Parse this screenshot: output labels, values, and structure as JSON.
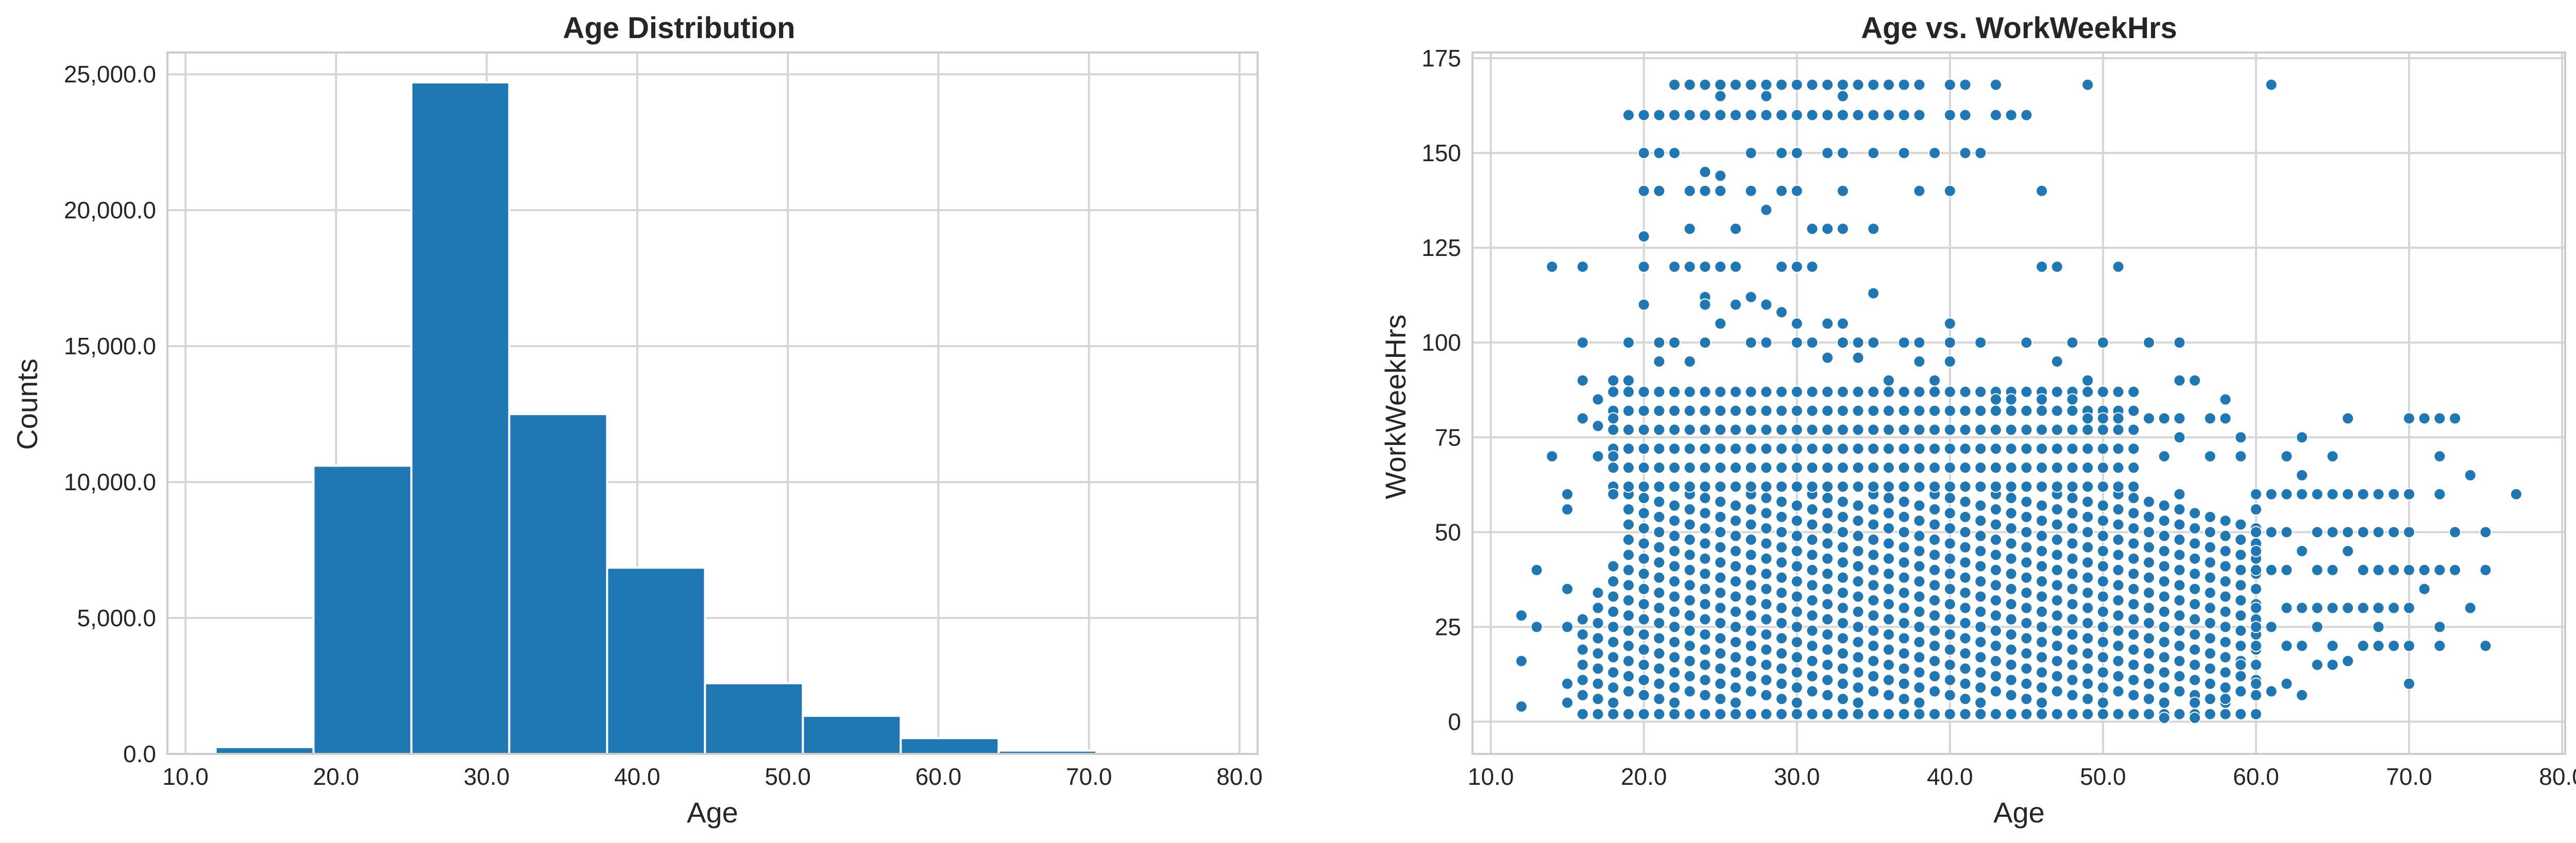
{
  "chart_data": [
    {
      "type": "bar",
      "title": "Age Distribution",
      "xlabel": "Age",
      "ylabel": "Counts",
      "xlim": [
        8.8,
        81.2
      ],
      "ylim": [
        0,
        25800
      ],
      "xticks": [
        "10.0",
        "20.0",
        "30.0",
        "40.0",
        "50.0",
        "60.0",
        "70.0",
        "80.0"
      ],
      "yticks": [
        "0.0",
        "5,000.0",
        "10,000.0",
        "15,000.0",
        "20,000.0",
        "25,000.0"
      ],
      "grid": true,
      "color": "#1f77b4",
      "bins": [
        {
          "from": 12.0,
          "to": 18.5,
          "value": 250
        },
        {
          "from": 18.5,
          "to": 25.0,
          "value": 10600
        },
        {
          "from": 25.0,
          "to": 31.5,
          "value": 24700
        },
        {
          "from": 31.5,
          "to": 38.0,
          "value": 12500
        },
        {
          "from": 38.0,
          "to": 44.5,
          "value": 6850
        },
        {
          "from": 44.5,
          "to": 51.0,
          "value": 2600
        },
        {
          "from": 51.0,
          "to": 57.5,
          "value": 1400
        },
        {
          "from": 57.5,
          "to": 64.0,
          "value": 580
        },
        {
          "from": 64.0,
          "to": 70.5,
          "value": 120
        },
        {
          "from": 70.5,
          "to": 77.0,
          "value": 20
        }
      ]
    },
    {
      "type": "scatter",
      "title": "Age vs. WorkWeekHrs",
      "xlabel": "Age",
      "ylabel": "WorkWeekHrs",
      "xlim": [
        8.8,
        80.2
      ],
      "ylim": [
        -8.5,
        176.5
      ],
      "xticks": [
        "10.0",
        "20.0",
        "30.0",
        "40.0",
        "50.0",
        "60.0",
        "70.0",
        "80.0"
      ],
      "yticks": [
        "0",
        "25",
        "50",
        "75",
        "100",
        "125",
        "150",
        "175"
      ],
      "grid": true,
      "color": "#1f77b4",
      "dense_region": {
        "x": [
          16,
          60
        ],
        "y": [
          2,
          60
        ],
        "x_int_step": 1
      },
      "points": [
        [
          12,
          28
        ],
        [
          12,
          16
        ],
        [
          12,
          4
        ],
        [
          13,
          25
        ],
        [
          13,
          40
        ],
        [
          14,
          70
        ],
        [
          14,
          120
        ],
        [
          15,
          60
        ],
        [
          15,
          56
        ],
        [
          15,
          35
        ],
        [
          15,
          25
        ],
        [
          15,
          10
        ],
        [
          15,
          5
        ],
        [
          16,
          100
        ],
        [
          16,
          120
        ],
        [
          16,
          90
        ],
        [
          16,
          80
        ],
        [
          17,
          70
        ],
        [
          17,
          78
        ],
        [
          17,
          85
        ],
        [
          18,
          60
        ],
        [
          18,
          70
        ],
        [
          18,
          90
        ],
        [
          18,
          80
        ],
        [
          19,
          100
        ],
        [
          19,
          160
        ],
        [
          19,
          90
        ],
        [
          20,
          150
        ],
        [
          20,
          160
        ],
        [
          20,
          140
        ],
        [
          20,
          128
        ],
        [
          20,
          120
        ],
        [
          20,
          110
        ],
        [
          21,
          140
        ],
        [
          21,
          150
        ],
        [
          21,
          160
        ],
        [
          21,
          100
        ],
        [
          21,
          95
        ],
        [
          22,
          168
        ],
        [
          22,
          160
        ],
        [
          22,
          150
        ],
        [
          22,
          120
        ],
        [
          22,
          100
        ],
        [
          23,
          168
        ],
        [
          23,
          160
        ],
        [
          23,
          140
        ],
        [
          23,
          130
        ],
        [
          23,
          120
        ],
        [
          23,
          95
        ],
        [
          24,
          168
        ],
        [
          24,
          160
        ],
        [
          24,
          145
        ],
        [
          24,
          140
        ],
        [
          24,
          120
        ],
        [
          24,
          112
        ],
        [
          24,
          110
        ],
        [
          24,
          100
        ],
        [
          25,
          168
        ],
        [
          25,
          165
        ],
        [
          25,
          160
        ],
        [
          25,
          144
        ],
        [
          25,
          140
        ],
        [
          25,
          120
        ],
        [
          25,
          105
        ],
        [
          26,
          168
        ],
        [
          26,
          160
        ],
        [
          26,
          130
        ],
        [
          26,
          120
        ],
        [
          26,
          110
        ],
        [
          27,
          168
        ],
        [
          27,
          160
        ],
        [
          27,
          150
        ],
        [
          27,
          140
        ],
        [
          27,
          112
        ],
        [
          27,
          100
        ],
        [
          28,
          168
        ],
        [
          28,
          165
        ],
        [
          28,
          160
        ],
        [
          28,
          135
        ],
        [
          28,
          110
        ],
        [
          28,
          100
        ],
        [
          29,
          168
        ],
        [
          29,
          160
        ],
        [
          29,
          150
        ],
        [
          29,
          140
        ],
        [
          29,
          120
        ],
        [
          29,
          108
        ],
        [
          30,
          168
        ],
        [
          30,
          160
        ],
        [
          30,
          150
        ],
        [
          30,
          140
        ],
        [
          30,
          120
        ],
        [
          30,
          105
        ],
        [
          30,
          100
        ],
        [
          31,
          168
        ],
        [
          31,
          160
        ],
        [
          31,
          130
        ],
        [
          31,
          120
        ],
        [
          31,
          100
        ],
        [
          32,
          168
        ],
        [
          32,
          160
        ],
        [
          32,
          150
        ],
        [
          32,
          130
        ],
        [
          32,
          105
        ],
        [
          32,
          96
        ],
        [
          33,
          168
        ],
        [
          33,
          165
        ],
        [
          33,
          160
        ],
        [
          33,
          150
        ],
        [
          33,
          140
        ],
        [
          33,
          130
        ],
        [
          33,
          105
        ],
        [
          33,
          100
        ],
        [
          34,
          168
        ],
        [
          34,
          160
        ],
        [
          34,
          100
        ],
        [
          34,
          96
        ],
        [
          35,
          168
        ],
        [
          35,
          160
        ],
        [
          35,
          150
        ],
        [
          35,
          130
        ],
        [
          35,
          113
        ],
        [
          35,
          100
        ],
        [
          36,
          168
        ],
        [
          36,
          160
        ],
        [
          36,
          90
        ],
        [
          37,
          168
        ],
        [
          37,
          160
        ],
        [
          37,
          150
        ],
        [
          37,
          100
        ],
        [
          38,
          168
        ],
        [
          38,
          160
        ],
        [
          38,
          140
        ],
        [
          38,
          100
        ],
        [
          38,
          95
        ],
        [
          39,
          150
        ],
        [
          39,
          90
        ],
        [
          40,
          168
        ],
        [
          40,
          160
        ],
        [
          40,
          140
        ],
        [
          40,
          105
        ],
        [
          40,
          100
        ],
        [
          40,
          95
        ],
        [
          41,
          168
        ],
        [
          41,
          160
        ],
        [
          41,
          150
        ],
        [
          42,
          150
        ],
        [
          42,
          100
        ],
        [
          43,
          168
        ],
        [
          43,
          160
        ],
        [
          43,
          85
        ],
        [
          44,
          160
        ],
        [
          44,
          85
        ],
        [
          45,
          160
        ],
        [
          45,
          100
        ],
        [
          46,
          140
        ],
        [
          46,
          120
        ],
        [
          46,
          85
        ],
        [
          47,
          120
        ],
        [
          47,
          95
        ],
        [
          48,
          100
        ],
        [
          48,
          85
        ],
        [
          49,
          168
        ],
        [
          49,
          90
        ],
        [
          49,
          80
        ],
        [
          50,
          100
        ],
        [
          50,
          80
        ],
        [
          51,
          120
        ],
        [
          51,
          80
        ],
        [
          53,
          100
        ],
        [
          53,
          80
        ],
        [
          54,
          80
        ],
        [
          54,
          70
        ],
        [
          54,
          1
        ],
        [
          55,
          100
        ],
        [
          55,
          90
        ],
        [
          55,
          80
        ],
        [
          55,
          75
        ],
        [
          56,
          90
        ],
        [
          56,
          1
        ],
        [
          56,
          5
        ],
        [
          57,
          80
        ],
        [
          57,
          70
        ],
        [
          58,
          85
        ],
        [
          58,
          80
        ],
        [
          58,
          6
        ],
        [
          59,
          75
        ],
        [
          59,
          70
        ],
        [
          59,
          20
        ],
        [
          59,
          15
        ],
        [
          60,
          60
        ],
        [
          60,
          56
        ],
        [
          60,
          50
        ],
        [
          60,
          45
        ],
        [
          60,
          40
        ],
        [
          60,
          35
        ],
        [
          60,
          30
        ],
        [
          60,
          25
        ],
        [
          60,
          20
        ],
        [
          60,
          15
        ],
        [
          60,
          10
        ],
        [
          61,
          168
        ],
        [
          61,
          60
        ],
        [
          61,
          50
        ],
        [
          61,
          40
        ],
        [
          61,
          25
        ],
        [
          61,
          8
        ],
        [
          62,
          70
        ],
        [
          62,
          60
        ],
        [
          62,
          50
        ],
        [
          62,
          40
        ],
        [
          62,
          30
        ],
        [
          62,
          20
        ],
        [
          62,
          10
        ],
        [
          63,
          75
        ],
        [
          63,
          65
        ],
        [
          63,
          60
        ],
        [
          63,
          45
        ],
        [
          63,
          30
        ],
        [
          63,
          20
        ],
        [
          63,
          7
        ],
        [
          64,
          60
        ],
        [
          64,
          50
        ],
        [
          64,
          40
        ],
        [
          64,
          30
        ],
        [
          64,
          25
        ],
        [
          64,
          15
        ],
        [
          65,
          70
        ],
        [
          65,
          60
        ],
        [
          65,
          50
        ],
        [
          65,
          40
        ],
        [
          65,
          30
        ],
        [
          65,
          20
        ],
        [
          65,
          15
        ],
        [
          66,
          80
        ],
        [
          66,
          60
        ],
        [
          66,
          50
        ],
        [
          66,
          45
        ],
        [
          66,
          30
        ],
        [
          66,
          16
        ],
        [
          67,
          60
        ],
        [
          67,
          50
        ],
        [
          67,
          40
        ],
        [
          67,
          30
        ],
        [
          67,
          20
        ],
        [
          68,
          60
        ],
        [
          68,
          50
        ],
        [
          68,
          40
        ],
        [
          68,
          30
        ],
        [
          68,
          25
        ],
        [
          68,
          20
        ],
        [
          69,
          60
        ],
        [
          69,
          50
        ],
        [
          69,
          40
        ],
        [
          69,
          30
        ],
        [
          69,
          20
        ],
        [
          70,
          80
        ],
        [
          70,
          60
        ],
        [
          70,
          50
        ],
        [
          70,
          40
        ],
        [
          70,
          30
        ],
        [
          70,
          20
        ],
        [
          70,
          10
        ],
        [
          71,
          80
        ],
        [
          71,
          40
        ],
        [
          71,
          35
        ],
        [
          72,
          80
        ],
        [
          72,
          70
        ],
        [
          72,
          60
        ],
        [
          72,
          40
        ],
        [
          72,
          25
        ],
        [
          72,
          20
        ],
        [
          73,
          80
        ],
        [
          73,
          50
        ],
        [
          73,
          40
        ],
        [
          74,
          65
        ],
        [
          74,
          30
        ],
        [
          75,
          50
        ],
        [
          75,
          40
        ],
        [
          75,
          20
        ],
        [
          77,
          60
        ]
      ]
    }
  ]
}
